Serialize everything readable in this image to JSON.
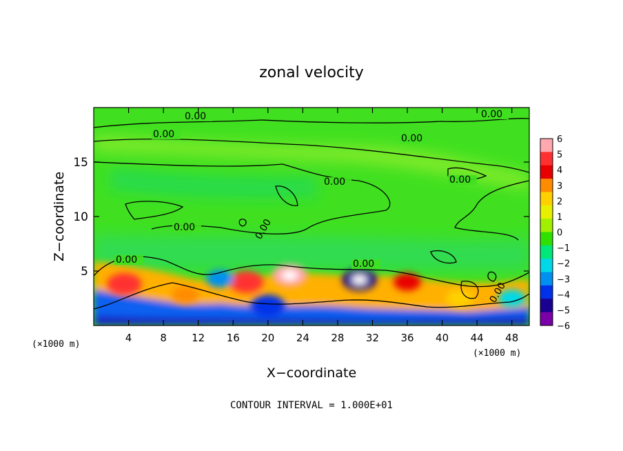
{
  "chart_data": {
    "type": "heatmap",
    "title": "zonal velocity",
    "xlabel": "X−coordinate",
    "ylabel": "Z−coordinate",
    "x_unit_left": "(×1000 m)",
    "x_unit_right": "(×1000 m)",
    "xlim": [
      0,
      50
    ],
    "ylim": [
      0,
      20
    ],
    "xticks": [
      4,
      8,
      12,
      16,
      20,
      24,
      28,
      32,
      36,
      40,
      44,
      48
    ],
    "yticks": [
      5,
      10,
      15
    ],
    "colorbar": {
      "ticks": [
        "6",
        "5",
        "4",
        "3",
        "2",
        "1",
        "0",
        "−1",
        "−2",
        "−3",
        "−4",
        "−5",
        "−6"
      ],
      "colors": [
        "#ffa8b0",
        "#ff3030",
        "#e80000",
        "#ff8c00",
        "#ffd000",
        "#e6f000",
        "#a0f000",
        "#30e000",
        "#00e87a",
        "#00d8e8",
        "#0090f0",
        "#0030e8",
        "#1a0090",
        "#7a00a8"
      ]
    },
    "contour_label": "0.00",
    "footnote": "CONTOUR INTERVAL = 1.000E+01",
    "anomalies": [
      {
        "x": 3.5,
        "z": 3.8,
        "value": 5
      },
      {
        "x": 10.5,
        "z": 2.8,
        "value": 3
      },
      {
        "x": 17.5,
        "z": 4.0,
        "value": 5
      },
      {
        "x": 22.5,
        "z": 4.6,
        "value": 6
      },
      {
        "x": 30.5,
        "z": 4.2,
        "value": -6
      },
      {
        "x": 20.0,
        "z": 1.8,
        "value": -5
      },
      {
        "x": 14.5,
        "z": 4.3,
        "value": -4
      },
      {
        "x": 36.0,
        "z": 4.0,
        "value": 4
      },
      {
        "x": 48.0,
        "z": 2.5,
        "value": -3
      },
      {
        "x": 42.0,
        "z": 2.5,
        "value": 2
      }
    ]
  }
}
